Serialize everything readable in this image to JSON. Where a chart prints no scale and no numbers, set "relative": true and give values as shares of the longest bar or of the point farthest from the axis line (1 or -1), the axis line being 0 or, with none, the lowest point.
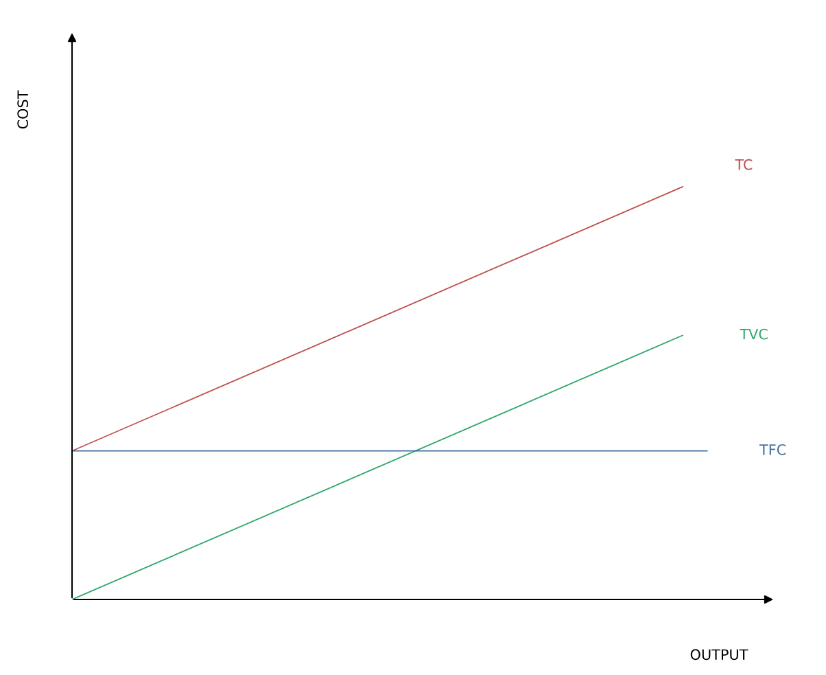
{
  "chart_data": {
    "type": "line",
    "relative": true,
    "xlabel": "OUTPUT",
    "annotations": [
      "COST"
    ],
    "tick_labels": false,
    "legend": false,
    "categories": [
      null,
      null,
      null,
      null,
      null,
      null,
      null,
      null,
      null,
      null,
      null,
      null,
      null,
      null,
      null,
      null,
      null,
      null,
      null,
      null,
      null,
      null,
      null,
      null,
      null,
      null,
      null
    ],
    "series": [
      {
        "name": "TC",
        "color": "#c0504d",
        "values": [
          0.36,
          null,
          null,
          null,
          null,
          null,
          null,
          null,
          null,
          null,
          null,
          null,
          null,
          null,
          null,
          null,
          null,
          null,
          null,
          null,
          null,
          null,
          null,
          null,
          null,
          1,
          null
        ]
      },
      {
        "name": "TVC",
        "color": "#2ea86a",
        "values": [
          0,
          null,
          null,
          null,
          null,
          null,
          null,
          null,
          null,
          null,
          null,
          null,
          null,
          null,
          null,
          null,
          null,
          null,
          null,
          null,
          null,
          null,
          null,
          null,
          null,
          0.64,
          null
        ]
      },
      {
        "name": "TFC",
        "color": "#3f6f9f",
        "values": [
          0.36,
          null,
          null,
          null,
          null,
          null,
          null,
          null,
          null,
          null,
          null,
          null,
          null,
          null,
          null,
          null,
          null,
          null,
          null,
          null,
          null,
          null,
          null,
          null,
          null,
          null,
          0.36
        ]
      }
    ]
  }
}
